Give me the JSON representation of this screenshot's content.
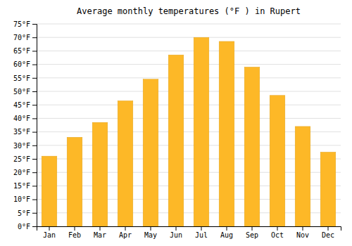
{
  "chart_data": {
    "type": "bar",
    "title": "Average monthly temperatures (°F ) in Rupert",
    "categories": [
      "Jan",
      "Feb",
      "Mar",
      "Apr",
      "May",
      "Jun",
      "Jul",
      "Aug",
      "Sep",
      "Oct",
      "Nov",
      "Dec"
    ],
    "values": [
      26,
      33,
      38.5,
      46.5,
      54.5,
      63.5,
      70,
      68.5,
      59,
      48.5,
      37,
      27.5
    ],
    "color": "#FDB827",
    "ylim": [
      0,
      75
    ],
    "yticks": [
      {
        "value": 0,
        "label": "0°F"
      },
      {
        "value": 5,
        "label": "5°F"
      },
      {
        "value": 10,
        "label": "10°F"
      },
      {
        "value": 15,
        "label": "15°F"
      },
      {
        "value": 20,
        "label": "20°F"
      },
      {
        "value": 25,
        "label": "25°F"
      },
      {
        "value": 30,
        "label": "30°F"
      },
      {
        "value": 35,
        "label": "35°F"
      },
      {
        "value": 40,
        "label": "40°F"
      },
      {
        "value": 45,
        "label": "45°F"
      },
      {
        "value": 50,
        "label": "50°F"
      },
      {
        "value": 55,
        "label": "55°F"
      },
      {
        "value": 60,
        "label": "60°F"
      },
      {
        "value": 65,
        "label": "65°F"
      },
      {
        "value": 70,
        "label": "70°F"
      },
      {
        "value": 75,
        "label": "75°F"
      }
    ],
    "grid": true
  }
}
